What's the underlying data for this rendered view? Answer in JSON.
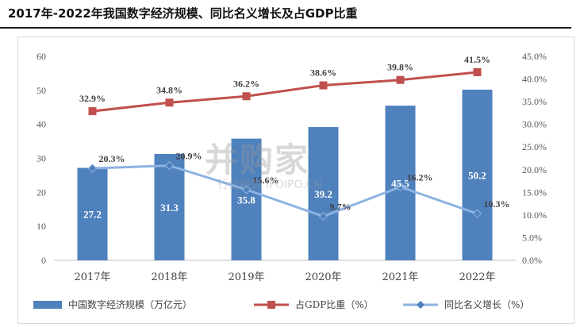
{
  "title": "2017年-2022年我国数字经济规模、同比名义增长及占GDP比重",
  "watermark": {
    "brand": "并购家",
    "sub": "行业报告 IPOIPO.CN"
  },
  "chart_data": {
    "type": "bar+line",
    "categories": [
      "2017年",
      "2018年",
      "2019年",
      "2020年",
      "2021年",
      "2022年"
    ],
    "series": [
      {
        "name": "中国数字经济规模（万亿元）",
        "type": "bar",
        "axis": "left",
        "values": [
          27.2,
          31.3,
          35.8,
          39.2,
          45.5,
          50.2
        ],
        "labels": [
          "27.2",
          "31.3",
          "35.8",
          "39.2",
          "45.5",
          "50.2"
        ],
        "color": "#4f81bd"
      },
      {
        "name": "占GDP比重（%）",
        "type": "line",
        "axis": "right",
        "values": [
          32.9,
          34.8,
          36.2,
          38.6,
          39.8,
          41.5
        ],
        "labels": [
          "32.9%",
          "34.8%",
          "36.2%",
          "38.6%",
          "39.8%",
          "41.5%"
        ],
        "color": "#c0504d"
      },
      {
        "name": "同比名义增长（%）",
        "type": "line",
        "axis": "right",
        "values": [
          20.3,
          20.9,
          15.6,
          9.7,
          16.2,
          10.3
        ],
        "labels": [
          "20.3%",
          "20.9%",
          "15.6%",
          "9.7%",
          "16.2%",
          "10.3%"
        ],
        "color": "#8db3e2"
      }
    ],
    "y_left": {
      "range": [
        0,
        60
      ],
      "ticks": [
        "0",
        "10",
        "20",
        "30",
        "40",
        "50",
        "60"
      ]
    },
    "y_right": {
      "range": [
        0,
        45
      ],
      "ticks": [
        "0.0%",
        "5.0%",
        "10.0%",
        "15.0%",
        "20.0%",
        "25.0%",
        "30.0%",
        "35.0%",
        "40.0%",
        "45.0%"
      ]
    },
    "grid": false,
    "legend": "bottom"
  }
}
